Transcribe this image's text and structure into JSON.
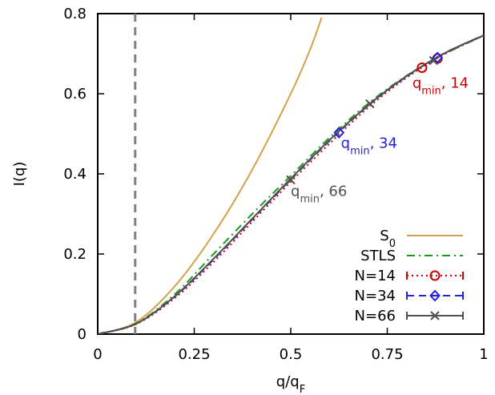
{
  "chart_data": {
    "type": "line",
    "xlabel": {
      "base": "q/q",
      "sub": "F"
    },
    "ylabel": "I(q)",
    "xlim": [
      0,
      1
    ],
    "ylim": [
      0,
      0.8
    ],
    "xticks": [
      0,
      0.25,
      0.5,
      0.75,
      1
    ],
    "xtick_labels": [
      "0",
      "0.25",
      "0.5",
      "0.75",
      "1"
    ],
    "yticks": [
      0,
      0.2,
      0.4,
      0.6,
      0.8
    ],
    "ytick_labels": [
      "0",
      "0.2",
      "0.4",
      "0.6",
      "0.8"
    ],
    "grid": false,
    "legend_position": "bottom-right",
    "vertical_line": {
      "x": 0.097,
      "color": "#808080"
    },
    "series": [
      {
        "name": "S",
        "name_sub": "0",
        "color": "#d4a04a",
        "dash": "solid",
        "marker": "none",
        "x": [
          0,
          0.1,
          0.2,
          0.3,
          0.4,
          0.5,
          0.55,
          0.58
        ],
        "y": [
          0,
          0.03,
          0.12,
          0.25,
          0.41,
          0.6,
          0.71,
          0.79
        ]
      },
      {
        "name": "STLS",
        "color": "#1a9a1a",
        "dash": "dashdot",
        "marker": "none",
        "x": [
          0,
          0.1,
          0.2,
          0.3,
          0.4,
          0.5,
          0.6,
          0.7,
          0.8,
          0.9,
          1.0
        ],
        "y": [
          0,
          0.027,
          0.1,
          0.2,
          0.3,
          0.395,
          0.49,
          0.575,
          0.645,
          0.7,
          0.745
        ]
      },
      {
        "name": "N=14",
        "color": "#cc0000",
        "dash": "dotted",
        "marker": "circle",
        "x": [
          0,
          0.1,
          0.2,
          0.3,
          0.4,
          0.5,
          0.6,
          0.7,
          0.8,
          0.9,
          1.0
        ],
        "y": [
          0,
          0.025,
          0.09,
          0.18,
          0.28,
          0.38,
          0.475,
          0.565,
          0.64,
          0.7,
          0.745
        ],
        "marker_x": [
          0.84,
          0.88
        ],
        "marker_y": [
          0.665,
          0.688
        ]
      },
      {
        "name": "N=34",
        "color": "#2222dd",
        "dash": "dashed",
        "marker": "diamond",
        "x": [
          0,
          0.1,
          0.2,
          0.3,
          0.4,
          0.5,
          0.6,
          0.7,
          0.8,
          0.9,
          1.0
        ],
        "y": [
          0,
          0.026,
          0.094,
          0.186,
          0.286,
          0.386,
          0.482,
          0.57,
          0.643,
          0.702,
          0.746
        ],
        "marker_x": [
          0.625,
          0.88
        ],
        "marker_y": [
          0.503,
          0.69
        ]
      },
      {
        "name": "N=66",
        "color": "#505050",
        "dash": "solid",
        "marker": "cross",
        "x": [
          0,
          0.1,
          0.2,
          0.3,
          0.4,
          0.5,
          0.6,
          0.7,
          0.8,
          0.9,
          1.0
        ],
        "y": [
          0,
          0.026,
          0.095,
          0.188,
          0.288,
          0.388,
          0.484,
          0.571,
          0.644,
          0.702,
          0.746
        ],
        "marker_x": [
          0.5,
          0.705,
          0.87
        ],
        "marker_y": [
          0.385,
          0.575,
          0.683
        ]
      }
    ],
    "annotations": [
      {
        "base": "q",
        "sub": "min",
        "rest": ", 14",
        "x": 0.815,
        "y": 0.615,
        "color": "#cc0000"
      },
      {
        "base": "q",
        "sub": "min",
        "rest": ", 34",
        "x": 0.63,
        "y": 0.465,
        "color": "#2222dd"
      },
      {
        "base": "q",
        "sub": "min",
        "rest": ", 66",
        "x": 0.5,
        "y": 0.345,
        "color": "#505050"
      }
    ]
  }
}
